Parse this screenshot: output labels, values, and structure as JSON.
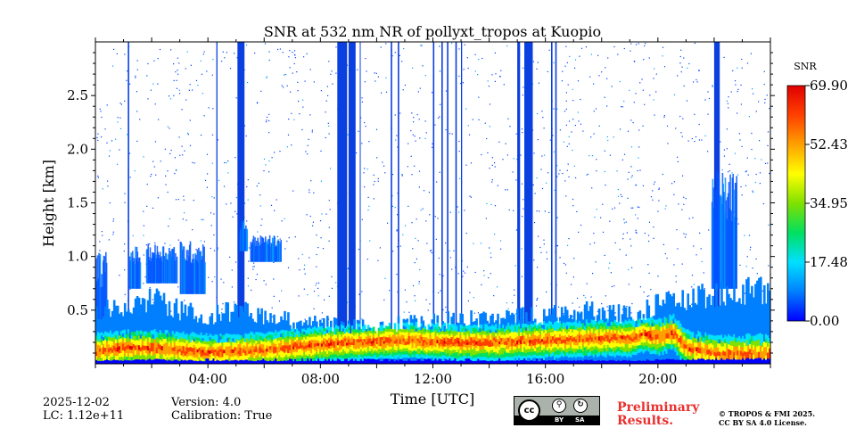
{
  "chart_data": {
    "type": "heatmap",
    "title": "SNR at 532 nm NR of pollyxt_tropos at Kuopio",
    "xlabel": "Time [UTC]",
    "ylabel": "Height [km]",
    "xlim_hours": [
      0,
      24
    ],
    "ylim_km": [
      0,
      3.0
    ],
    "x_ticks": [
      {
        "value": 4,
        "label": "04:00"
      },
      {
        "value": 8,
        "label": "08:00"
      },
      {
        "value": 12,
        "label": "12:00"
      },
      {
        "value": 16,
        "label": "16:00"
      },
      {
        "value": 20,
        "label": "20:00"
      }
    ],
    "y_ticks": [
      {
        "value": 0.5,
        "label": "0.5"
      },
      {
        "value": 1.0,
        "label": "1.0"
      },
      {
        "value": 1.5,
        "label": "1.5"
      },
      {
        "value": 2.0,
        "label": "2.0"
      },
      {
        "value": 2.5,
        "label": "2.5"
      }
    ],
    "colorbar": {
      "label": "SNR",
      "min": 0.0,
      "max": 69.9,
      "ticks": [
        "0.00",
        "17.48",
        "34.95",
        "52.43",
        "69.90"
      ],
      "colormap": [
        "#0000ff",
        "#0080ff",
        "#00e0ff",
        "#00e060",
        "#80e000",
        "#ffff00",
        "#ffa000",
        "#ff4000",
        "#e00000"
      ]
    },
    "features": {
      "boundary_layer_top_km": [
        [
          0.0,
          0.5
        ],
        [
          1.0,
          0.55
        ],
        [
          2.0,
          0.6
        ],
        [
          3.0,
          0.5
        ],
        [
          4.0,
          0.45
        ],
        [
          5.0,
          0.5
        ],
        [
          6.0,
          0.45
        ],
        [
          7.0,
          0.4
        ],
        [
          8.0,
          0.38
        ],
        [
          9.0,
          0.35
        ],
        [
          10.0,
          0.35
        ],
        [
          11.0,
          0.38
        ],
        [
          12.0,
          0.4
        ],
        [
          13.0,
          0.42
        ],
        [
          14.0,
          0.42
        ],
        [
          15.0,
          0.45
        ],
        [
          16.0,
          0.45
        ],
        [
          17.0,
          0.5
        ],
        [
          18.0,
          0.48
        ],
        [
          19.0,
          0.45
        ],
        [
          20.0,
          0.55
        ],
        [
          21.0,
          0.62
        ],
        [
          22.0,
          0.65
        ],
        [
          23.0,
          0.68
        ],
        [
          24.0,
          0.7
        ]
      ],
      "strong_layer_center_km": [
        [
          0.0,
          0.12
        ],
        [
          1.0,
          0.15
        ],
        [
          2.0,
          0.15
        ],
        [
          3.0,
          0.13
        ],
        [
          4.0,
          0.11
        ],
        [
          5.0,
          0.12
        ],
        [
          6.0,
          0.13
        ],
        [
          7.0,
          0.16
        ],
        [
          8.0,
          0.18
        ],
        [
          9.0,
          0.2
        ],
        [
          10.0,
          0.21
        ],
        [
          11.0,
          0.22
        ],
        [
          12.0,
          0.21
        ],
        [
          13.0,
          0.2
        ],
        [
          14.0,
          0.2
        ],
        [
          15.0,
          0.21
        ],
        [
          16.0,
          0.22
        ],
        [
          17.0,
          0.23
        ],
        [
          18.0,
          0.24
        ],
        [
          19.0,
          0.24
        ],
        [
          19.5,
          0.28
        ],
        [
          20.0,
          0.25
        ],
        [
          20.5,
          0.3
        ],
        [
          21.0,
          0.15
        ],
        [
          22.0,
          0.1
        ],
        [
          23.0,
          0.1
        ],
        [
          24.0,
          0.1
        ]
      ],
      "cloud_patches": [
        {
          "t0": 0.0,
          "t1": 0.4,
          "h0": 0.3,
          "h1": 1.05
        },
        {
          "t0": 1.2,
          "t1": 1.6,
          "h0": 0.7,
          "h1": 1.1
        },
        {
          "t0": 1.8,
          "t1": 2.9,
          "h0": 0.75,
          "h1": 1.12
        },
        {
          "t0": 3.0,
          "t1": 3.9,
          "h0": 0.65,
          "h1": 1.15
        },
        {
          "t0": 5.1,
          "t1": 5.4,
          "h0": 1.05,
          "h1": 1.35
        },
        {
          "t0": 5.5,
          "t1": 6.6,
          "h0": 0.95,
          "h1": 1.2
        },
        {
          "t0": 21.9,
          "t1": 22.8,
          "h0": 0.7,
          "h1": 1.8
        }
      ],
      "full_column_gaps_hours": [
        [
          1.15,
          1.2
        ],
        [
          4.3,
          4.34
        ],
        [
          5.05,
          5.3
        ],
        [
          8.6,
          8.95
        ],
        [
          9.0,
          9.25
        ],
        [
          9.4,
          9.43
        ],
        [
          10.5,
          10.55
        ],
        [
          10.75,
          10.8
        ],
        [
          12.0,
          12.05
        ],
        [
          12.3,
          12.35
        ],
        [
          12.5,
          12.55
        ],
        [
          12.8,
          12.85
        ],
        [
          13.0,
          13.04
        ],
        [
          15.0,
          15.1
        ],
        [
          15.25,
          15.55
        ],
        [
          16.2,
          16.25
        ],
        [
          16.35,
          16.4
        ],
        [
          22.0,
          22.2
        ]
      ]
    }
  },
  "footer": {
    "date": "2025-12-02",
    "lc": "LC: 1.12e+11",
    "version": "Version: 4.0",
    "calibration": "Calibration: True",
    "preliminary_line1": "Preliminary",
    "preliminary_line2": "Results.",
    "copyright_line1": "© TROPOS & FMI 2025.",
    "copyright_line2": "CC BY SA 4.0 License.",
    "license_badge": {
      "cc": "cc",
      "by": "BY",
      "sa": "SA"
    }
  }
}
